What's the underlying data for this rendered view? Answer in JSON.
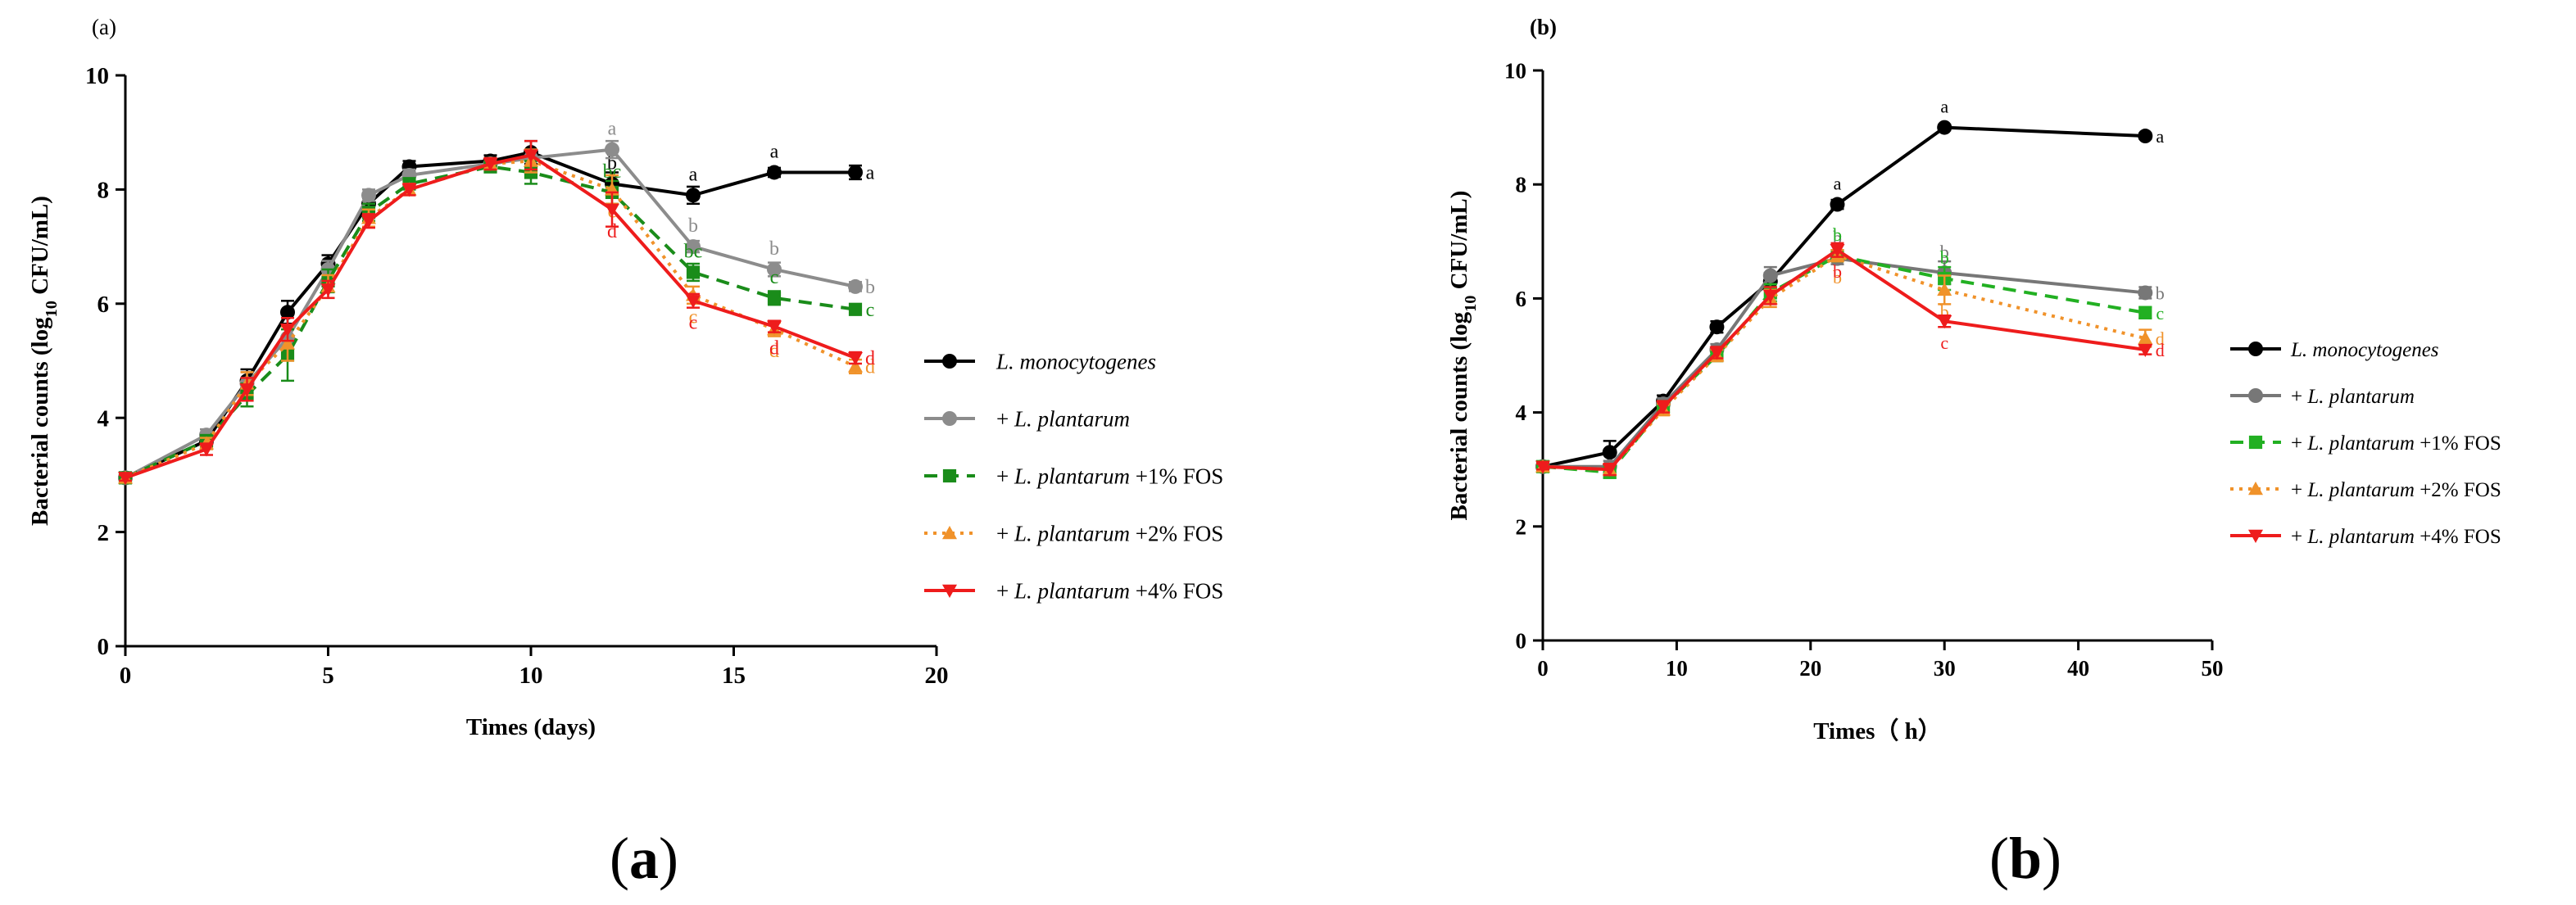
{
  "figure_caption": [
    "(a)",
    "(b)"
  ],
  "chart_data": [
    {
      "type": "line",
      "panel_label": "(a)",
      "caption": "(a)",
      "xlabel": "Times (days)",
      "ylabel_main": "Bacterial counts (log",
      "ylabel_sub": "10",
      "ylabel_tail": " CFU/mL)",
      "xlim": [
        0,
        20
      ],
      "ylim": [
        0,
        10
      ],
      "xticks": [
        0,
        5,
        10,
        15,
        20
      ],
      "yticks": [
        0,
        2,
        4,
        6,
        8,
        10
      ],
      "grid": false,
      "legend_position": "right",
      "series": [
        {
          "name_italic": "L. monocytogenes",
          "name_prefix": "",
          "name_suffix": "",
          "color": "#000000",
          "dash": "solid",
          "marker": "circle",
          "x": [
            0,
            2,
            3,
            4,
            5,
            6,
            7,
            9,
            10,
            12,
            14,
            16,
            18
          ],
          "values": [
            2.95,
            3.6,
            4.65,
            5.85,
            6.7,
            7.75,
            8.4,
            8.5,
            8.65,
            8.1,
            7.9,
            8.3,
            8.3
          ],
          "errors": [
            0.05,
            0.1,
            0.2,
            0.2,
            0.15,
            0.1,
            0.1,
            0.1,
            0.2,
            0.2,
            0.15,
            0.08,
            0.12
          ],
          "labels": [
            {
              "i": 9,
              "text": "b"
            },
            {
              "i": 10,
              "text": "a"
            },
            {
              "i": 11,
              "text": "a"
            },
            {
              "i": 12,
              "text": "a"
            }
          ]
        },
        {
          "name_italic": "L. plantarum",
          "name_prefix": "+ ",
          "name_suffix": "",
          "color": "#8c8c8c",
          "dash": "solid",
          "marker": "circle",
          "x": [
            0,
            2,
            3,
            4,
            5,
            6,
            7,
            9,
            10,
            12,
            14,
            16,
            18
          ],
          "values": [
            2.95,
            3.7,
            4.6,
            5.4,
            6.6,
            7.9,
            8.25,
            8.45,
            8.55,
            8.7,
            7.0,
            6.6,
            6.3
          ],
          "errors": [
            0.05,
            0.1,
            0.2,
            0.2,
            0.15,
            0.1,
            0.1,
            0.1,
            0.15,
            0.15,
            0.1,
            0.12,
            0.08
          ],
          "labels": [
            {
              "i": 9,
              "text": "a"
            },
            {
              "i": 10,
              "text": "b"
            },
            {
              "i": 11,
              "text": "b"
            },
            {
              "i": 12,
              "text": "b"
            }
          ]
        },
        {
          "name_italic": "L. plantarum",
          "name_prefix": "+ ",
          "name_suffix": " +1% FOS",
          "color": "#1a8c1a",
          "dash": "dashed",
          "marker": "square",
          "x": [
            0,
            2,
            3,
            4,
            5,
            6,
            7,
            9,
            10,
            12,
            14,
            16,
            18
          ],
          "values": [
            2.95,
            3.6,
            4.4,
            5.1,
            6.4,
            7.6,
            8.1,
            8.4,
            8.3,
            7.95,
            6.55,
            6.1,
            5.9
          ],
          "errors": [
            0.05,
            0.1,
            0.2,
            0.45,
            0.2,
            0.15,
            0.1,
            0.1,
            0.2,
            0.2,
            0.15,
            0.12,
            0.08
          ],
          "labels": [
            {
              "i": 9,
              "text": "bc"
            },
            {
              "i": 10,
              "text": "bc"
            },
            {
              "i": 11,
              "text": "c"
            },
            {
              "i": 12,
              "text": "c"
            }
          ]
        },
        {
          "name_italic": "L. plantarum",
          "name_prefix": "+ ",
          "name_suffix": " +2% FOS",
          "color": "#f0922a",
          "dash": "dotted",
          "marker": "triangle-up",
          "x": [
            0,
            2,
            3,
            4,
            5,
            6,
            7,
            9,
            10,
            12,
            14,
            16,
            18
          ],
          "values": [
            2.95,
            3.55,
            4.6,
            5.3,
            6.3,
            7.5,
            8.0,
            8.45,
            8.5,
            8.0,
            6.15,
            5.55,
            4.9
          ],
          "errors": [
            0.05,
            0.1,
            0.2,
            0.3,
            0.2,
            0.15,
            0.1,
            0.1,
            0.2,
            0.25,
            0.15,
            0.12,
            0.12
          ],
          "labels": [
            {
              "i": 9,
              "text": "c"
            },
            {
              "i": 10,
              "text": "c"
            },
            {
              "i": 11,
              "text": "d"
            },
            {
              "i": 12,
              "text": "d"
            }
          ]
        },
        {
          "name_italic": "L. plantarum",
          "name_prefix": "+ ",
          "name_suffix": " +4% FOS",
          "color": "#ee1c1c",
          "dash": "solid",
          "marker": "triangle-down",
          "x": [
            0,
            2,
            3,
            4,
            5,
            6,
            7,
            9,
            10,
            12,
            14,
            16,
            18
          ],
          "values": [
            2.95,
            3.45,
            4.5,
            5.55,
            6.25,
            7.45,
            8.0,
            8.45,
            8.6,
            7.65,
            6.05,
            5.6,
            5.05
          ],
          "errors": [
            0.05,
            0.1,
            0.2,
            0.2,
            0.15,
            0.12,
            0.1,
            0.1,
            0.25,
            0.3,
            0.12,
            0.1,
            0.1
          ],
          "labels": [
            {
              "i": 9,
              "text": "d"
            },
            {
              "i": 10,
              "text": "c"
            },
            {
              "i": 11,
              "text": "d"
            },
            {
              "i": 12,
              "text": "d"
            }
          ]
        }
      ]
    },
    {
      "type": "line",
      "panel_label": "(b)",
      "caption": "(b)",
      "xlabel": "Times（ h）",
      "ylabel_main": "Bacterial counts (log",
      "ylabel_sub": "10",
      "ylabel_tail": "  CFU/mL)",
      "xlim": [
        0,
        50
      ],
      "ylim": [
        0,
        10
      ],
      "xticks": [
        0,
        10,
        20,
        30,
        40,
        50
      ],
      "yticks": [
        0,
        2,
        4,
        6,
        8,
        10
      ],
      "grid": false,
      "legend_position": "right",
      "series": [
        {
          "name_italic": "L. monocytogenes",
          "name_prefix": "",
          "name_suffix": "",
          "color": "#000000",
          "dash": "solid",
          "marker": "circle",
          "x": [
            0,
            5,
            9,
            13,
            17,
            22,
            30,
            45
          ],
          "values": [
            3.05,
            3.3,
            4.2,
            5.5,
            6.3,
            7.65,
            9.0,
            8.85
          ],
          "errors": [
            0.05,
            0.2,
            0.1,
            0.1,
            0.15,
            0.08,
            0.05,
            0.05
          ],
          "labels": [
            {
              "i": 5,
              "text": "a"
            },
            {
              "i": 6,
              "text": "a"
            },
            {
              "i": 7,
              "text": "a"
            }
          ]
        },
        {
          "name_italic": "L. plantarum",
          "name_prefix": "+ ",
          "name_suffix": "",
          "color": "#777777",
          "dash": "solid",
          "marker": "circle",
          "x": [
            0,
            5,
            9,
            13,
            17,
            22,
            30,
            45
          ],
          "values": [
            3.05,
            3.05,
            4.15,
            5.1,
            6.4,
            6.7,
            6.45,
            6.1
          ],
          "errors": [
            0.05,
            0.1,
            0.1,
            0.1,
            0.15,
            0.1,
            0.2,
            0.1
          ],
          "labels": [
            {
              "i": 5,
              "text": "b"
            },
            {
              "i": 6,
              "text": "b"
            },
            {
              "i": 7,
              "text": "b"
            }
          ]
        },
        {
          "name_italic": "L. plantarum",
          "name_prefix": "+ ",
          "name_suffix": " +1% FOS",
          "color": "#22b022",
          "dash": "dashed",
          "marker": "square",
          "x": [
            0,
            5,
            9,
            13,
            17,
            22,
            30,
            45
          ],
          "values": [
            3.05,
            2.95,
            4.1,
            5.0,
            6.1,
            6.75,
            6.35,
            5.75
          ],
          "errors": [
            0.05,
            0.1,
            0.1,
            0.1,
            0.15,
            0.1,
            0.2,
            0.1
          ],
          "labels": [
            {
              "i": 5,
              "text": "b"
            },
            {
              "i": 6,
              "text": "b"
            },
            {
              "i": 7,
              "text": "c"
            }
          ]
        },
        {
          "name_italic": "L. plantarum",
          "name_prefix": "+ ",
          "name_suffix": " +2% FOS",
          "color": "#f0922a",
          "dash": "dotted",
          "marker": "triangle-up",
          "x": [
            0,
            5,
            9,
            13,
            17,
            22,
            30,
            45
          ],
          "values": [
            3.05,
            3.0,
            4.05,
            5.0,
            6.0,
            6.75,
            6.15,
            5.3
          ],
          "errors": [
            0.05,
            0.1,
            0.1,
            0.1,
            0.15,
            0.1,
            0.25,
            0.15
          ],
          "labels": [
            {
              "i": 5,
              "text": "b"
            },
            {
              "i": 6,
              "text": "b"
            },
            {
              "i": 7,
              "text": "d"
            }
          ]
        },
        {
          "name_italic": "L. plantarum",
          "name_prefix": "+ ",
          "name_suffix": " +4% FOS",
          "color": "#ee1c1c",
          "dash": "solid",
          "marker": "triangle-down",
          "x": [
            0,
            5,
            9,
            13,
            17,
            22,
            30,
            45
          ],
          "values": [
            3.05,
            3.0,
            4.1,
            5.05,
            6.05,
            6.85,
            5.6,
            5.1
          ],
          "errors": [
            0.05,
            0.1,
            0.1,
            0.1,
            0.15,
            0.12,
            0.1,
            0.08
          ],
          "labels": [
            {
              "i": 5,
              "text": "b"
            },
            {
              "i": 6,
              "text": "c"
            },
            {
              "i": 7,
              "text": "d"
            }
          ]
        }
      ]
    }
  ]
}
